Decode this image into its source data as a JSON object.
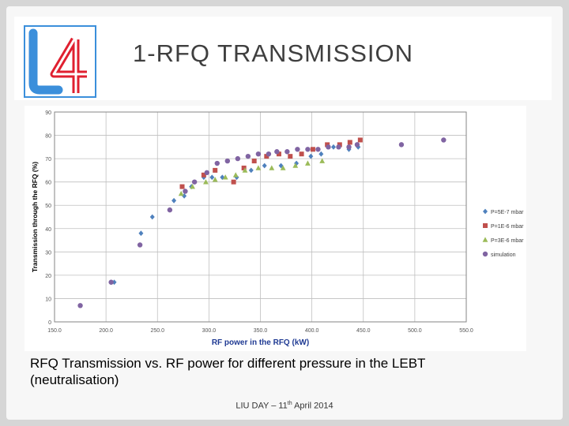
{
  "slide": {
    "logo_text": "L4",
    "title": "1-RFQ TRANSMISSION",
    "caption_line1": "RFQ Transmission vs. RF power for different pressure in the LEBT",
    "caption_line2": "(neutralisation)",
    "footer_prefix": "LIU DAY – 11",
    "footer_sup": "th",
    "footer_suffix": " April 2014"
  },
  "colors": {
    "series1": "#4f81bd",
    "series2": "#c0504d",
    "series3": "#9bbb59",
    "series4": "#8064a2",
    "logo_blue": "#3b8fdb",
    "logo_red": "#e02030"
  },
  "chart_data": {
    "type": "scatter",
    "title": "",
    "xlabel": "RF power in the RFQ (kW)",
    "ylabel": "Transmission through the RFQ (%)",
    "xlim": [
      150,
      550
    ],
    "ylim": [
      0,
      90
    ],
    "xticks": [
      "150.0",
      "200.0",
      "250.0",
      "300.0",
      "350.0",
      "400.0",
      "450.0",
      "500.0",
      "550.0"
    ],
    "yticks": [
      "0",
      "10",
      "20",
      "30",
      "40",
      "50",
      "60",
      "70",
      "80",
      "90"
    ],
    "grid": true,
    "legend_position": "right",
    "series": [
      {
        "name": "P=5E-7 mbar",
        "marker": "diamond",
        "points": [
          [
            208,
            17
          ],
          [
            234,
            38
          ],
          [
            245,
            45
          ],
          [
            266,
            52
          ],
          [
            276,
            54
          ],
          [
            283,
            58
          ],
          [
            295,
            62
          ],
          [
            303,
            62
          ],
          [
            313,
            62
          ],
          [
            327,
            62
          ],
          [
            341,
            65
          ],
          [
            354,
            67
          ],
          [
            370,
            67
          ],
          [
            385,
            68
          ],
          [
            399,
            71
          ],
          [
            409,
            72
          ],
          [
            421,
            75
          ],
          [
            436,
            74
          ],
          [
            445,
            75
          ]
        ]
      },
      {
        "name": "P=1E-6 mbar",
        "marker": "square",
        "points": [
          [
            274,
            58
          ],
          [
            295,
            63
          ],
          [
            306,
            65
          ],
          [
            324,
            60
          ],
          [
            334,
            66
          ],
          [
            344,
            69
          ],
          [
            356,
            71
          ],
          [
            368,
            72
          ],
          [
            379,
            71
          ],
          [
            390,
            72
          ],
          [
            401,
            74
          ],
          [
            415,
            76
          ],
          [
            427,
            76
          ],
          [
            437,
            77
          ],
          [
            447,
            78
          ]
        ]
      },
      {
        "name": "P=3E-6 mbar",
        "marker": "triangle",
        "points": [
          [
            273,
            55
          ],
          [
            284,
            58
          ],
          [
            297,
            60
          ],
          [
            306,
            61
          ],
          [
            316,
            62
          ],
          [
            326,
            63
          ],
          [
            335,
            65
          ],
          [
            348,
            66
          ],
          [
            361,
            66
          ],
          [
            372,
            66
          ],
          [
            384,
            67
          ],
          [
            396,
            68
          ],
          [
            410,
            69
          ]
        ]
      },
      {
        "name": "simulation",
        "marker": "circle",
        "points": [
          [
            175,
            7
          ],
          [
            205,
            17
          ],
          [
            233,
            33
          ],
          [
            262,
            48
          ],
          [
            277,
            56
          ],
          [
            286,
            60
          ],
          [
            298,
            64
          ],
          [
            308,
            68
          ],
          [
            318,
            69
          ],
          [
            328,
            70
          ],
          [
            338,
            71
          ],
          [
            348,
            72
          ],
          [
            358,
            72
          ],
          [
            366,
            73
          ],
          [
            376,
            73
          ],
          [
            386,
            74
          ],
          [
            396,
            74
          ],
          [
            406,
            74
          ],
          [
            416,
            75
          ],
          [
            426,
            75
          ],
          [
            436,
            75
          ],
          [
            444,
            76
          ],
          [
            487,
            76
          ],
          [
            528,
            78
          ]
        ]
      }
    ]
  }
}
